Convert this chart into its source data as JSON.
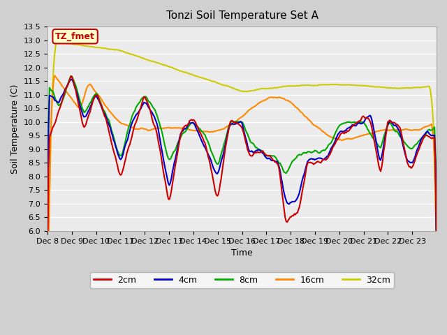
{
  "title": "Tonzi Soil Temperature Set A",
  "xlabel": "Time",
  "ylabel": "Soil Temperature (C)",
  "ylim": [
    6.0,
    13.5
  ],
  "yticks": [
    6.0,
    6.5,
    7.0,
    7.5,
    8.0,
    8.5,
    9.0,
    9.5,
    10.0,
    10.5,
    11.0,
    11.5,
    12.0,
    12.5,
    13.0,
    13.5
  ],
  "xtick_labels": [
    "Dec 8",
    "Dec 9",
    "Dec 10",
    "Dec 11",
    "Dec 12",
    "Dec 13",
    "Dec 14",
    "Dec 15",
    "Dec 16",
    "Dec 17",
    "Dec 18",
    "Dec 19",
    "Dec 20",
    "Dec 21",
    "Dec 22",
    "Dec 23"
  ],
  "colors": {
    "2cm": "#cc0000",
    "4cm": "#0000cc",
    "8cm": "#00aa00",
    "16cm": "#ff8800",
    "32cm": "#cccc00"
  },
  "background_color": "#d0d0d0",
  "plot_bg_color": "#ebebeb",
  "legend_box_edge": "#cc0000",
  "annotation_text": "TZ_fmet",
  "annotation_color": "#cc0000",
  "annotation_bg": "#ffffcc"
}
